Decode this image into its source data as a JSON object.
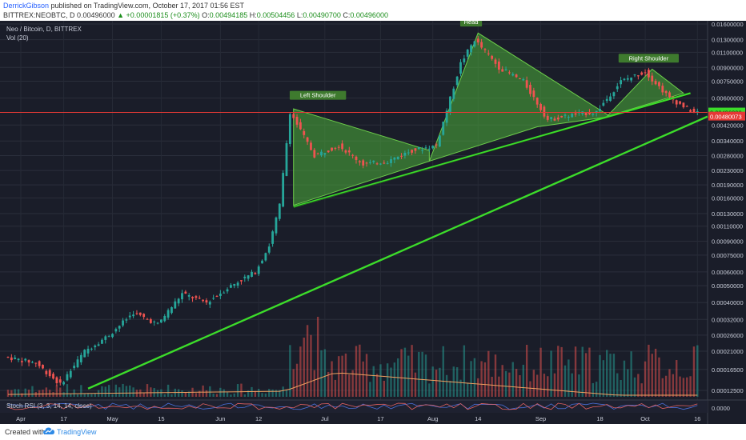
{
  "header": {
    "author": "DerrickGibson",
    "published_text": "published on TradingView.com, October 17, 2017 01:56 EST",
    "symbol": "BITTREX:NEOBTC, D",
    "last": "0.00496000",
    "change_arrow": "▲",
    "change": "+0.00001815 (+0.37%)",
    "o_label": "O:",
    "o": "0.00494185",
    "h_label": "H:",
    "h": "0.00504456",
    "l_label": "L:",
    "l": "0.00490700",
    "c_label": "C:",
    "c": "0.00496000"
  },
  "legend": {
    "title": "Neo / Bitcoin, D, BITTREX",
    "vol": "Vol (20)",
    "stoch": "Stoch RSI (3, 3, 14, 14, close)"
  },
  "footer": {
    "created_with": "Created with",
    "brand": "TradingView",
    "logo_icon": "tradingview-cloud-icon"
  },
  "colors": {
    "background": "#1a1d29",
    "up": "#26a69a",
    "down": "#ef5350",
    "trendline": "#3cdc2a",
    "pattern_fill": "#4caf3a",
    "price_line": "#e53935",
    "volume_ma": "#f0a060"
  },
  "chart_data": {
    "type": "candlestick",
    "scale": "log",
    "title": "Neo / Bitcoin, D, BITTREX",
    "y_ticks": [
      "0.01600000",
      "0.01300000",
      "0.01100000",
      "0.00900000",
      "0.00750000",
      "0.00600000",
      "0.00420000",
      "0.00340000",
      "0.00280000",
      "0.00230000",
      "0.00190000",
      "0.00160000",
      "0.00130000",
      "0.00110000",
      "0.00090000",
      "0.00075000",
      "0.00060000",
      "0.00050000",
      "0.00040000",
      "0.00032000",
      "0.00026000",
      "0.00021000",
      "0.00016500",
      "0.00012500"
    ],
    "current_price": "0.00496000",
    "prior_price_marker": "0.00480073",
    "x_ticks": [
      "Apr",
      "17",
      "May",
      "15",
      "Jun",
      "12",
      "Jul",
      "17",
      "Aug",
      "14",
      "Sep",
      "18",
      "Oct",
      "16"
    ],
    "stoch_axis_label": "0.0000",
    "annotations": [
      "Left Shoulder",
      "Head",
      "Right Shoulder"
    ],
    "path_points": [
      [
        "Apr 1",
        0.000195
      ],
      [
        "Apr 10",
        0.00018
      ],
      [
        "Apr 17",
        0.000135
      ],
      [
        "Apr 24",
        0.00021
      ],
      [
        "May 1",
        0.00026
      ],
      [
        "May 8",
        0.00035
      ],
      [
        "May 15",
        0.0003
      ],
      [
        "May 22",
        0.00045
      ],
      [
        "May 29",
        0.0004
      ],
      [
        "Jun 5",
        0.0005
      ],
      [
        "Jun 12",
        0.0006
      ],
      [
        "Jun 16",
        0.00085
      ],
      [
        "Jun 19",
        0.00145
      ],
      [
        "Jun 22",
        0.005
      ],
      [
        "Jun 29",
        0.0028
      ],
      [
        "Jul 6",
        0.0032
      ],
      [
        "Jul 13",
        0.0025
      ],
      [
        "Jul 20",
        0.0026
      ],
      [
        "Jul 27",
        0.003
      ],
      [
        "Aug 3",
        0.0032
      ],
      [
        "Aug 10",
        0.0095
      ],
      [
        "Aug 14",
        0.013
      ],
      [
        "Aug 21",
        0.009
      ],
      [
        "Aug 28",
        0.0075
      ],
      [
        "Sep 4",
        0.0045
      ],
      [
        "Sep 11",
        0.0048
      ],
      [
        "Sep 18",
        0.005
      ],
      [
        "Sep 25",
        0.0075
      ],
      [
        "Oct 2",
        0.0085
      ],
      [
        "Oct 9",
        0.006
      ],
      [
        "Oct 16",
        0.00496
      ]
    ]
  }
}
